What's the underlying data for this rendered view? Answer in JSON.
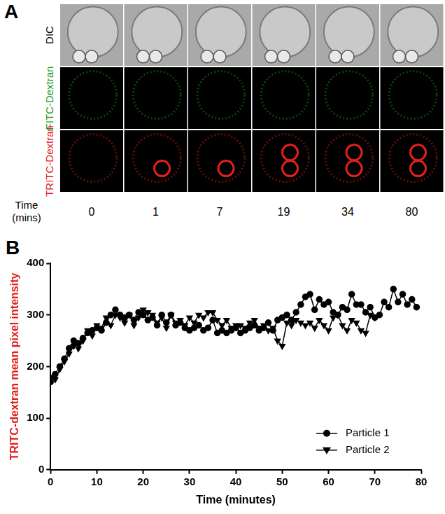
{
  "panel_a": {
    "panel_label": "A",
    "rows": [
      {
        "name": "DIC",
        "color": "#000000"
      },
      {
        "name": "FITC-Dextran",
        "color": "#1a9a1a"
      },
      {
        "name": "TRITC-Dextran",
        "color": "#e0201a"
      }
    ],
    "time_label": [
      "Time",
      "(mins)"
    ],
    "times": [
      0,
      1,
      7,
      19,
      34,
      80
    ]
  },
  "chart_data": {
    "type": "line",
    "panel_label": "B",
    "xlabel": "Time (minutes)",
    "ylabel": "TRITC-dextran mean pixel intensity",
    "x": [
      0,
      1,
      2,
      3,
      4,
      5,
      6,
      7,
      8,
      9,
      10,
      11,
      12,
      13,
      14,
      15,
      16,
      17,
      18,
      19,
      20,
      21,
      22,
      23,
      24,
      25,
      26,
      27,
      28,
      29,
      30,
      31,
      32,
      33,
      34,
      35,
      36,
      37,
      38,
      39,
      40,
      41,
      42,
      43,
      44,
      45,
      46,
      47,
      48,
      49,
      50,
      51,
      52,
      53,
      54,
      55,
      56,
      57,
      58,
      59,
      60,
      61,
      62,
      63,
      64,
      65,
      66,
      67,
      68,
      69,
      70,
      71,
      72,
      73,
      74,
      75,
      76,
      77,
      78,
      79
    ],
    "series": [
      {
        "name": "Particle 1",
        "color": "#000000",
        "marker": "circle",
        "line_style": "solid",
        "values": [
          170,
          185,
          200,
          215,
          235,
          250,
          245,
          255,
          265,
          270,
          275,
          270,
          285,
          300,
          310,
          300,
          295,
          300,
          290,
          305,
          300,
          290,
          295,
          280,
          300,
          285,
          300,
          280,
          285,
          275,
          270,
          275,
          280,
          270,
          275,
          290,
          265,
          270,
          265,
          270,
          275,
          265,
          270,
          275,
          280,
          270,
          275,
          285,
          270,
          290,
          295,
          300,
          290,
          305,
          320,
          335,
          340,
          310,
          330,
          320,
          325,
          305,
          300,
          315,
          310,
          340,
          320,
          320,
          305,
          315,
          295,
          300,
          325,
          315,
          350,
          325,
          340,
          320,
          330,
          315
        ]
      },
      {
        "name": "Particle 2",
        "color": "#000000",
        "marker": "triangle-down",
        "line_style": "solid",
        "values": [
          180,
          175,
          195,
          210,
          225,
          240,
          235,
          250,
          270,
          260,
          280,
          275,
          295,
          280,
          300,
          295,
          285,
          300,
          280,
          295,
          310,
          305,
          300,
          285,
          295,
          275,
          300,
          285,
          290,
          280,
          295,
          285,
          300,
          295,
          305,
          305,
          290,
          280,
          290,
          275,
          280,
          280,
          275,
          285,
          290,
          275,
          280,
          270,
          275,
          250,
          240,
          285,
          280,
          290,
          285,
          280,
          285,
          275,
          290,
          280,
          270,
          295,
          300,
          280,
          270,
          290,
          285,
          270,
          265,
          300,
          295,
          null,
          null,
          null,
          null,
          null,
          null,
          null,
          null,
          null
        ]
      }
    ],
    "xlim": [
      0,
      80
    ],
    "xticks": [
      0,
      10,
      20,
      30,
      40,
      50,
      60,
      70,
      80
    ],
    "ylim": [
      0,
      400
    ],
    "yticks": [
      0,
      100,
      200,
      300,
      400
    ],
    "grid": false,
    "legend": "lower right"
  }
}
